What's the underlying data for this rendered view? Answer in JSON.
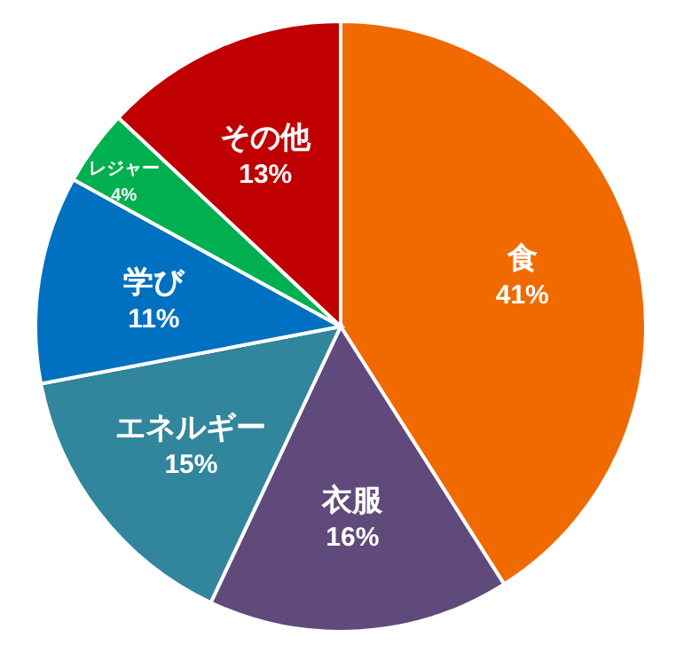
{
  "chart_data": {
    "type": "pie",
    "categories": [
      "食",
      "衣服",
      "エネルギー",
      "学び",
      "レジャー",
      "その他"
    ],
    "values": [
      41,
      16,
      15,
      11,
      4,
      13
    ],
    "colors": [
      "#f06a00",
      "#604a7b",
      "#31859c",
      "#0070c0",
      "#00b050",
      "#c00000"
    ],
    "value_labels": [
      "41%",
      "16%",
      "15%",
      "11%",
      "4%",
      "13%"
    ]
  }
}
